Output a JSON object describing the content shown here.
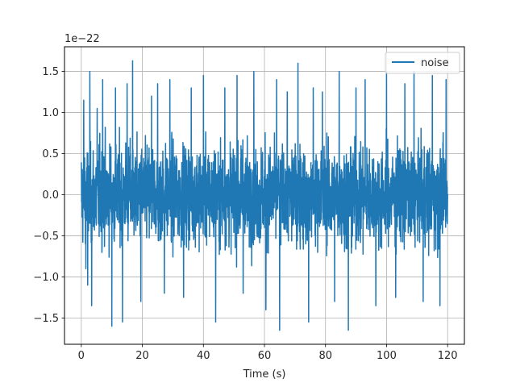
{
  "chart_data": {
    "type": "line",
    "xlabel": "Time (s)",
    "ylabel": "",
    "offset_text": "1e−22",
    "xlim": [
      -5.5,
      125.5
    ],
    "ylim": [
      -1.82,
      1.8
    ],
    "x_ticks": [
      0,
      20,
      40,
      60,
      80,
      100,
      120
    ],
    "x_tick_labels": [
      "0",
      "20",
      "40",
      "60",
      "80",
      "100",
      "120"
    ],
    "y_ticks": [
      -1.5,
      -1.0,
      -0.5,
      0.0,
      0.5,
      1.0,
      1.5
    ],
    "y_tick_labels": [
      "−1.5",
      "−1.0",
      "−0.5",
      "0.0",
      "0.5",
      "1.0",
      "1.5"
    ],
    "grid": true,
    "legend_position": "upper right",
    "series": [
      {
        "name": "noise",
        "color": "#1f77b4",
        "x_range": [
          0,
          120
        ],
        "typical_envelope": [
          -0.9,
          1.1
        ],
        "peaks": [
          {
            "x": 0.8,
            "y": 1.15
          },
          {
            "x": 1.5,
            "y": -0.9
          },
          {
            "x": 2.1,
            "y": -1.1
          },
          {
            "x": 2.8,
            "y": 1.5
          },
          {
            "x": 3.4,
            "y": -1.35
          },
          {
            "x": 5.2,
            "y": 1.05
          },
          {
            "x": 7.0,
            "y": 1.4
          },
          {
            "x": 10.0,
            "y": -1.6
          },
          {
            "x": 11.2,
            "y": 1.3
          },
          {
            "x": 13.5,
            "y": -1.55
          },
          {
            "x": 15.0,
            "y": 1.35
          },
          {
            "x": 16.8,
            "y": 1.63
          },
          {
            "x": 19.5,
            "y": -1.3
          },
          {
            "x": 23.0,
            "y": 1.2
          },
          {
            "x": 25.0,
            "y": 1.35
          },
          {
            "x": 27.2,
            "y": -1.2
          },
          {
            "x": 29.0,
            "y": 1.4
          },
          {
            "x": 33.5,
            "y": -1.25
          },
          {
            "x": 36.0,
            "y": 1.3
          },
          {
            "x": 40.0,
            "y": 1.45
          },
          {
            "x": 44.0,
            "y": -1.55
          },
          {
            "x": 47.0,
            "y": 1.3
          },
          {
            "x": 51.0,
            "y": 1.45
          },
          {
            "x": 53.0,
            "y": -1.2
          },
          {
            "x": 56.5,
            "y": 1.5
          },
          {
            "x": 60.5,
            "y": -1.4
          },
          {
            "x": 64.0,
            "y": 1.4
          },
          {
            "x": 65.0,
            "y": -1.65
          },
          {
            "x": 67.5,
            "y": 1.25
          },
          {
            "x": 71.0,
            "y": 1.6
          },
          {
            "x": 74.5,
            "y": -1.55
          },
          {
            "x": 76.0,
            "y": 1.3
          },
          {
            "x": 79.0,
            "y": 1.25
          },
          {
            "x": 83.0,
            "y": -1.3
          },
          {
            "x": 84.5,
            "y": 1.5
          },
          {
            "x": 87.5,
            "y": -1.65
          },
          {
            "x": 90.0,
            "y": 1.3
          },
          {
            "x": 93.0,
            "y": 1.4
          },
          {
            "x": 96.5,
            "y": -1.35
          },
          {
            "x": 100.0,
            "y": 1.5
          },
          {
            "x": 103.0,
            "y": -1.25
          },
          {
            "x": 106.0,
            "y": 1.35
          },
          {
            "x": 109.0,
            "y": 1.5
          },
          {
            "x": 112.0,
            "y": -1.3
          },
          {
            "x": 115.0,
            "y": 1.45
          },
          {
            "x": 117.5,
            "y": -1.35
          },
          {
            "x": 119.5,
            "y": 1.4
          }
        ]
      }
    ]
  }
}
